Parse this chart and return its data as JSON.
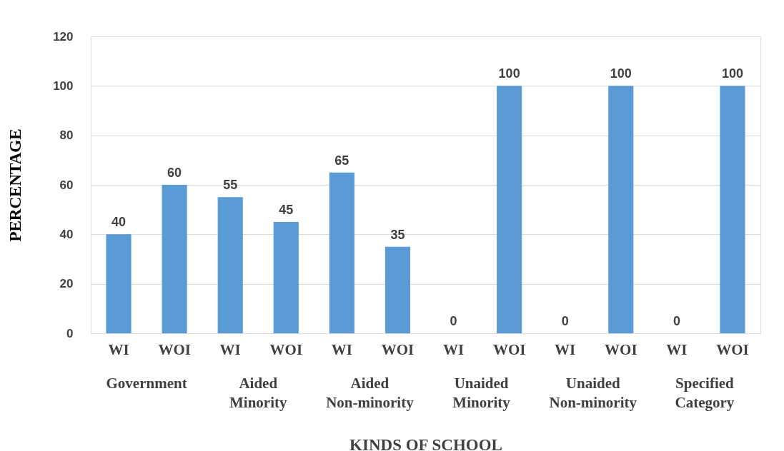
{
  "chart_data": {
    "type": "bar",
    "xlabel": "KINDS OF SCHOOL",
    "ylabel": "PERCENTAGE",
    "categories": [
      "WI",
      "WOI",
      "WI",
      "WOI",
      "WI",
      "WOI",
      "WI",
      "WOI",
      "WI",
      "WOI",
      "WI",
      "WOI"
    ],
    "annotations": [
      "Government",
      "Aided Minority",
      "Aided Non-minority",
      "Unaided Minority",
      "Unaided Non-minority",
      "Specified Category"
    ],
    "values": [
      40,
      60,
      55,
      45,
      65,
      35,
      0,
      100,
      0,
      100,
      0,
      100
    ],
    "color": "#5b9bd5",
    "ylim": [
      0,
      120
    ],
    "yticks": [
      0,
      20,
      40,
      60,
      80,
      100,
      120
    ],
    "grid": "y",
    "data_labels": true
  }
}
